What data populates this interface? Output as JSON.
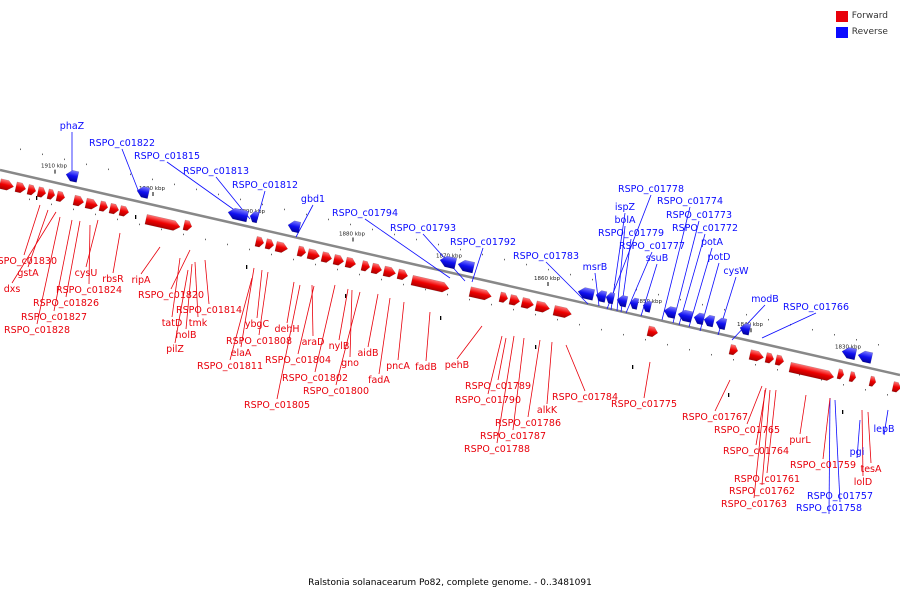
{
  "legend": [
    {
      "label": "Forward",
      "color": "#e8000b"
    },
    {
      "label": "Reverse",
      "color": "#0b0bff"
    }
  ],
  "colors": {
    "forward": "#e8000b",
    "reverse": "#0b0bff",
    "backbone": "#888888"
  },
  "caption": "Ralstonia solanacearum Po82, complete genome. - 0..3481091",
  "ticks": [
    "1910 kbp",
    "1900 kbp",
    "1890 kbp",
    "1880 kbp",
    "1870 kbp",
    "1860 kbp",
    "1850 kbp",
    "1840 kbp",
    "1830 kbp"
  ],
  "genes": [
    {
      "name": "phaZ",
      "strand": "reverse"
    },
    {
      "name": "RSPO_c01822",
      "strand": "reverse"
    },
    {
      "name": "RSPO_c01815",
      "strand": "reverse"
    },
    {
      "name": "RSPO_c01813",
      "strand": "reverse"
    },
    {
      "name": "RSPO_c01812",
      "strand": "reverse"
    },
    {
      "name": "gbd1",
      "strand": "reverse"
    },
    {
      "name": "RSPO_c01794",
      "strand": "reverse"
    },
    {
      "name": "RSPO_c01793",
      "strand": "reverse"
    },
    {
      "name": "RSPO_c01792",
      "strand": "reverse"
    },
    {
      "name": "RSPO_c01783",
      "strand": "reverse"
    },
    {
      "name": "msrB",
      "strand": "reverse"
    },
    {
      "name": "RSPO_c01778",
      "strand": "reverse"
    },
    {
      "name": "ispZ",
      "strand": "reverse"
    },
    {
      "name": "bolA",
      "strand": "reverse"
    },
    {
      "name": "RSPO_c01779",
      "strand": "reverse"
    },
    {
      "name": "RSPO_c01777",
      "strand": "reverse"
    },
    {
      "name": "ssuB",
      "strand": "reverse"
    },
    {
      "name": "RSPO_c01774",
      "strand": "reverse"
    },
    {
      "name": "RSPO_c01773",
      "strand": "reverse"
    },
    {
      "name": "RSPO_c01772",
      "strand": "reverse"
    },
    {
      "name": "potA",
      "strand": "reverse"
    },
    {
      "name": "potD",
      "strand": "reverse"
    },
    {
      "name": "cysW",
      "strand": "reverse"
    },
    {
      "name": "modB",
      "strand": "reverse"
    },
    {
      "name": "RSPO_c01766",
      "strand": "reverse"
    },
    {
      "name": "pgi",
      "strand": "reverse"
    },
    {
      "name": "lepB",
      "strand": "reverse"
    },
    {
      "name": "RSPO_c01757",
      "strand": "reverse"
    },
    {
      "name": "RSPO_c01758",
      "strand": "reverse"
    },
    {
      "name": "RSPO_c01830",
      "strand": "forward"
    },
    {
      "name": "gstA",
      "strand": "forward"
    },
    {
      "name": "dxs",
      "strand": "forward"
    },
    {
      "name": "cysU",
      "strand": "forward"
    },
    {
      "name": "rbsR",
      "strand": "forward"
    },
    {
      "name": "RSPO_c01824",
      "strand": "forward"
    },
    {
      "name": "RSPO_c01826",
      "strand": "forward"
    },
    {
      "name": "RSPO_c01827",
      "strand": "forward"
    },
    {
      "name": "RSPO_c01828",
      "strand": "forward"
    },
    {
      "name": "ripA",
      "strand": "forward"
    },
    {
      "name": "RSPO_c01820",
      "strand": "forward"
    },
    {
      "name": "RSPO_c01814",
      "strand": "forward"
    },
    {
      "name": "tatD",
      "strand": "forward"
    },
    {
      "name": "tmk",
      "strand": "forward"
    },
    {
      "name": "holB",
      "strand": "forward"
    },
    {
      "name": "pilZ",
      "strand": "forward"
    },
    {
      "name": "ybgC",
      "strand": "forward"
    },
    {
      "name": "RSPO_c01808",
      "strand": "forward"
    },
    {
      "name": "elaA",
      "strand": "forward"
    },
    {
      "name": "RSPO_c01811",
      "strand": "forward"
    },
    {
      "name": "dehH",
      "strand": "forward"
    },
    {
      "name": "araD",
      "strand": "forward"
    },
    {
      "name": "RSPO_c01804",
      "strand": "forward"
    },
    {
      "name": "nylB",
      "strand": "forward"
    },
    {
      "name": "gno",
      "strand": "forward"
    },
    {
      "name": "RSPO_c01802",
      "strand": "forward"
    },
    {
      "name": "RSPO_c01800",
      "strand": "forward"
    },
    {
      "name": "RSPO_c01805",
      "strand": "forward"
    },
    {
      "name": "aidB",
      "strand": "forward"
    },
    {
      "name": "pncA",
      "strand": "forward"
    },
    {
      "name": "fadA",
      "strand": "forward"
    },
    {
      "name": "fadB",
      "strand": "forward"
    },
    {
      "name": "pehB",
      "strand": "forward"
    },
    {
      "name": "RSPO_c01789",
      "strand": "forward"
    },
    {
      "name": "RSPO_c01790",
      "strand": "forward"
    },
    {
      "name": "RSPO_c01784",
      "strand": "forward"
    },
    {
      "name": "alkK",
      "strand": "forward"
    },
    {
      "name": "RSPO_c01786",
      "strand": "forward"
    },
    {
      "name": "RSPO_c01787",
      "strand": "forward"
    },
    {
      "name": "RSPO_c01788",
      "strand": "forward"
    },
    {
      "name": "RSPO_c01775",
      "strand": "forward"
    },
    {
      "name": "RSPO_c01767",
      "strand": "forward"
    },
    {
      "name": "RSPO_c01765",
      "strand": "forward"
    },
    {
      "name": "RSPO_c01764",
      "strand": "forward"
    },
    {
      "name": "purL",
      "strand": "forward"
    },
    {
      "name": "RSPO_c01759",
      "strand": "forward"
    },
    {
      "name": "RSPO_c01761",
      "strand": "forward"
    },
    {
      "name": "RSPO_c01762",
      "strand": "forward"
    },
    {
      "name": "RSPO_c01763",
      "strand": "forward"
    },
    {
      "name": "tesA",
      "strand": "forward"
    },
    {
      "name": "lolD",
      "strand": "forward"
    }
  ]
}
